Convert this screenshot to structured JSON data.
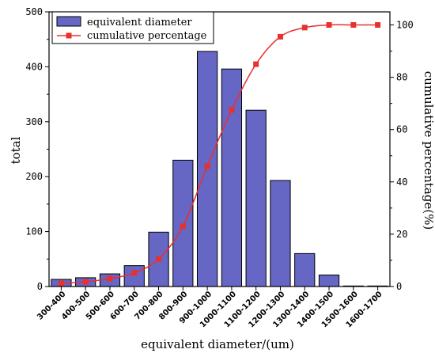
{
  "chart_data": {
    "type": "bar",
    "categories": [
      "300-400",
      "400-500",
      "500-600",
      "600-700",
      "700-800",
      "800-900",
      "900-1000",
      "1000-1100",
      "1100-1200",
      "1200-1300",
      "1300-1400",
      "1400-1500",
      "1500-1600",
      "1600-1700"
    ],
    "series": [
      {
        "name": "equivalent diameter",
        "type": "bar",
        "axis": "left",
        "color": "#6666c4",
        "values": [
          13,
          16,
          23,
          38,
          99,
          230,
          428,
          396,
          321,
          193,
          60,
          21,
          1,
          1
        ]
      },
      {
        "name": "cumulative percentage",
        "type": "line",
        "axis": "right",
        "color": "#e8302f",
        "values": [
          1.2,
          1.8,
          3.0,
          5.2,
          10.5,
          23.0,
          46.0,
          67.5,
          85.0,
          95.5,
          99.0,
          100,
          100,
          100
        ]
      }
    ],
    "xlabel": "equivalent diameter/(um)",
    "ylabel": "total",
    "y2label": "cumulative percentage(%)",
    "ylim": [
      0,
      500
    ],
    "y2lim": [
      0,
      105
    ],
    "yticks": [
      "0",
      "100",
      "200",
      "300",
      "400",
      "500"
    ],
    "y2ticks": [
      "0",
      "20",
      "40",
      "60",
      "80",
      "100"
    ],
    "y2tick_values": [
      0,
      20,
      40,
      60,
      80,
      100
    ],
    "grid": false,
    "legend_position": "top-left"
  }
}
